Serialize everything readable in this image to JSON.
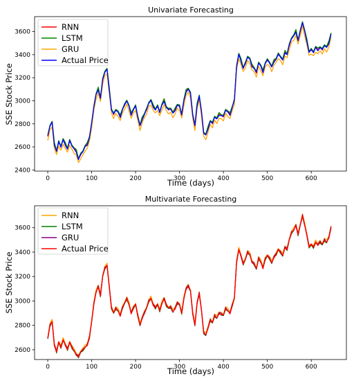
{
  "chart_data": [
    {
      "type": "line",
      "title": "Univariate Forecasting",
      "xlabel": "Time (days)",
      "ylabel": "SSE Stock Price",
      "xlim": [
        -30,
        680
      ],
      "ylim": [
        2390,
        3730
      ],
      "xticks": [
        0,
        100,
        200,
        300,
        400,
        500,
        600
      ],
      "yticks": [
        2400,
        2600,
        2800,
        3000,
        3200,
        3400,
        3600
      ],
      "grid": false,
      "legend_position": "top-left",
      "series": [
        {
          "name": "RNN",
          "color": "#ff0000",
          "offset": 5,
          "width": 1.2
        },
        {
          "name": "LSTM",
          "color": "#008000",
          "offset": 12,
          "width": 1.3
        },
        {
          "name": "GRU",
          "color": "#ffa500",
          "offset": -32,
          "width": 1.3
        },
        {
          "name": "Actual Price",
          "color": "#0000ff",
          "offset": 0,
          "width": 1.3
        }
      ],
      "x": [
        0,
        5,
        10,
        15,
        20,
        25,
        30,
        35,
        40,
        45,
        50,
        55,
        60,
        65,
        70,
        75,
        80,
        85,
        90,
        95,
        100,
        105,
        110,
        115,
        120,
        125,
        130,
        135,
        140,
        145,
        150,
        155,
        160,
        165,
        170,
        175,
        180,
        185,
        190,
        195,
        200,
        205,
        210,
        215,
        220,
        225,
        230,
        235,
        240,
        245,
        250,
        255,
        260,
        265,
        270,
        275,
        280,
        285,
        290,
        295,
        300,
        305,
        310,
        315,
        320,
        325,
        330,
        335,
        340,
        345,
        350,
        355,
        360,
        365,
        370,
        375,
        380,
        385,
        390,
        395,
        400,
        405,
        410,
        415,
        420,
        425,
        430,
        435,
        440,
        445,
        450,
        455,
        460,
        465,
        470,
        475,
        480,
        485,
        490,
        495,
        500,
        505,
        510,
        515,
        520,
        525,
        530,
        535,
        540,
        545,
        550,
        555,
        560,
        565,
        570,
        575,
        580,
        585,
        590,
        595,
        600,
        605,
        610,
        615,
        620,
        625,
        630,
        635,
        640,
        645
      ],
      "values": [
        2690,
        2780,
        2810,
        2620,
        2560,
        2640,
        2600,
        2660,
        2620,
        2580,
        2650,
        2610,
        2580,
        2560,
        2490,
        2530,
        2560,
        2600,
        2620,
        2680,
        2800,
        2950,
        3050,
        3100,
        3020,
        3180,
        3250,
        3270,
        3100,
        2920,
        2880,
        2920,
        2900,
        2860,
        2920,
        2960,
        3000,
        2950,
        2880,
        2920,
        2950,
        2860,
        2780,
        2840,
        2880,
        2920,
        2980,
        3000,
        2950,
        2920,
        2950,
        2900,
        2960,
        3000,
        2940,
        2920,
        2930,
        2890,
        2920,
        2960,
        2950,
        2880,
        3000,
        3080,
        3100,
        3060,
        2880,
        2780,
        2960,
        3040,
        2900,
        2720,
        2700,
        2760,
        2820,
        2800,
        2860,
        2840,
        2880,
        2870,
        2860,
        2920,
        2900,
        2880,
        2940,
        3000,
        3300,
        3400,
        3350,
        3280,
        3320,
        3380,
        3360,
        3300,
        3280,
        3240,
        3330,
        3300,
        3250,
        3320,
        3350,
        3330,
        3290,
        3340,
        3360,
        3400,
        3380,
        3350,
        3420,
        3400,
        3480,
        3540,
        3560,
        3600,
        3520,
        3600,
        3680,
        3600,
        3520,
        3420,
        3440,
        3420,
        3460,
        3440,
        3460,
        3440,
        3480,
        3460,
        3500,
        3580
      ]
    },
    {
      "type": "line",
      "title": "Multivariate Forecasting",
      "xlabel": "Time (days)",
      "ylabel": "SSE Stock Price",
      "xlim": [
        -30,
        680
      ],
      "ylim": [
        2520,
        3780
      ],
      "xticks": [
        0,
        100,
        200,
        300,
        400,
        500,
        600
      ],
      "yticks": [
        2600,
        2800,
        3000,
        3200,
        3400,
        3600
      ],
      "grid": false,
      "legend_position": "top-left",
      "series": [
        {
          "name": "RNN",
          "color": "#ffa500",
          "offset": 14,
          "width": 1.3
        },
        {
          "name": "LSTM",
          "color": "#008000",
          "offset": -4,
          "width": 1.2
        },
        {
          "name": "GRU",
          "color": "#800080",
          "offset": 4,
          "width": 1.2
        },
        {
          "name": "Actual Price",
          "color": "#ff0000",
          "offset": 0,
          "width": 1.4
        }
      ],
      "x": [
        0,
        5,
        10,
        15,
        20,
        25,
        30,
        35,
        40,
        45,
        50,
        55,
        60,
        65,
        70,
        75,
        80,
        85,
        90,
        95,
        100,
        105,
        110,
        115,
        120,
        125,
        130,
        135,
        140,
        145,
        150,
        155,
        160,
        165,
        170,
        175,
        180,
        185,
        190,
        195,
        200,
        205,
        210,
        215,
        220,
        225,
        230,
        235,
        240,
        245,
        250,
        255,
        260,
        265,
        270,
        275,
        280,
        285,
        290,
        295,
        300,
        305,
        310,
        315,
        320,
        325,
        330,
        335,
        340,
        345,
        350,
        355,
        360,
        365,
        370,
        375,
        380,
        385,
        390,
        395,
        400,
        405,
        410,
        415,
        420,
        425,
        430,
        435,
        440,
        445,
        450,
        455,
        460,
        465,
        470,
        475,
        480,
        485,
        490,
        495,
        500,
        505,
        510,
        515,
        520,
        525,
        530,
        535,
        540,
        545,
        550,
        555,
        560,
        565,
        570,
        575,
        580,
        585,
        590,
        595,
        600,
        605,
        610,
        615,
        620,
        625,
        630,
        635,
        640,
        645
      ],
      "values": [
        2690,
        2800,
        2830,
        2640,
        2580,
        2660,
        2620,
        2680,
        2640,
        2600,
        2660,
        2620,
        2590,
        2560,
        2540,
        2580,
        2600,
        2620,
        2640,
        2700,
        2830,
        2980,
        3070,
        3120,
        3040,
        3200,
        3270,
        3290,
        3120,
        2940,
        2900,
        2940,
        2920,
        2880,
        2940,
        2980,
        3020,
        2970,
        2900,
        2940,
        2970,
        2880,
        2800,
        2860,
        2900,
        2940,
        3000,
        3020,
        2970,
        2940,
        2970,
        2920,
        2980,
        3020,
        2960,
        2940,
        2950,
        2910,
        2940,
        2980,
        2970,
        2900,
        3020,
        3100,
        3120,
        3080,
        2900,
        2800,
        2980,
        3060,
        2920,
        2740,
        2720,
        2780,
        2840,
        2820,
        2880,
        2860,
        2900,
        2890,
        2880,
        2940,
        2920,
        2900,
        2960,
        3020,
        3320,
        3420,
        3370,
        3300,
        3340,
        3400,
        3380,
        3320,
        3300,
        3260,
        3350,
        3320,
        3270,
        3340,
        3370,
        3350,
        3310,
        3360,
        3380,
        3420,
        3400,
        3370,
        3440,
        3420,
        3500,
        3560,
        3580,
        3620,
        3540,
        3620,
        3700,
        3620,
        3540,
        3440,
        3460,
        3440,
        3480,
        3460,
        3480,
        3460,
        3500,
        3480,
        3520,
        3600
      ]
    }
  ]
}
